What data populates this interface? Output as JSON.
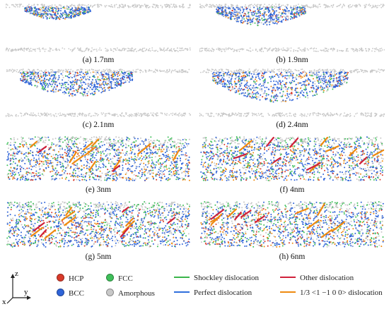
{
  "panels": [
    {
      "label": "(a) 1.7nm",
      "depth": 0.15
    },
    {
      "label": "(b) 1.9nm",
      "depth": 0.3
    },
    {
      "label": "(c) 2.1nm",
      "depth": 0.45
    },
    {
      "label": "(d) 2.4nm",
      "depth": 0.6
    },
    {
      "label": "(e) 3nm",
      "depth": 1.0
    },
    {
      "label": "(f) 4nm",
      "depth": 1.0
    },
    {
      "label": "(g) 5nm",
      "depth": 1.0
    },
    {
      "label": "(h) 6nm",
      "depth": 1.0
    }
  ],
  "legend": {
    "hcp": "HCP",
    "fcc": "FCC",
    "bcc": "BCC",
    "amorphous": "Amorphous",
    "shockley": "Shockley dislocation",
    "other": "Other dislocation",
    "perfect": "Perfect dislocation",
    "dislocation_100": "1/3 <1 −1 0 0> dislocation"
  },
  "axes": {
    "z": "z",
    "y": "y",
    "x": "x"
  },
  "colors": {
    "hcp": "#d83a2a",
    "fcc": "#3fbf5a",
    "bcc": "#2f64d8",
    "amorphous": "#c8c8c8",
    "shockley": "#3ab54a",
    "other": "#d0203a",
    "perfect": "#2f6fdc",
    "dislocation_100": "#ee8a10"
  }
}
